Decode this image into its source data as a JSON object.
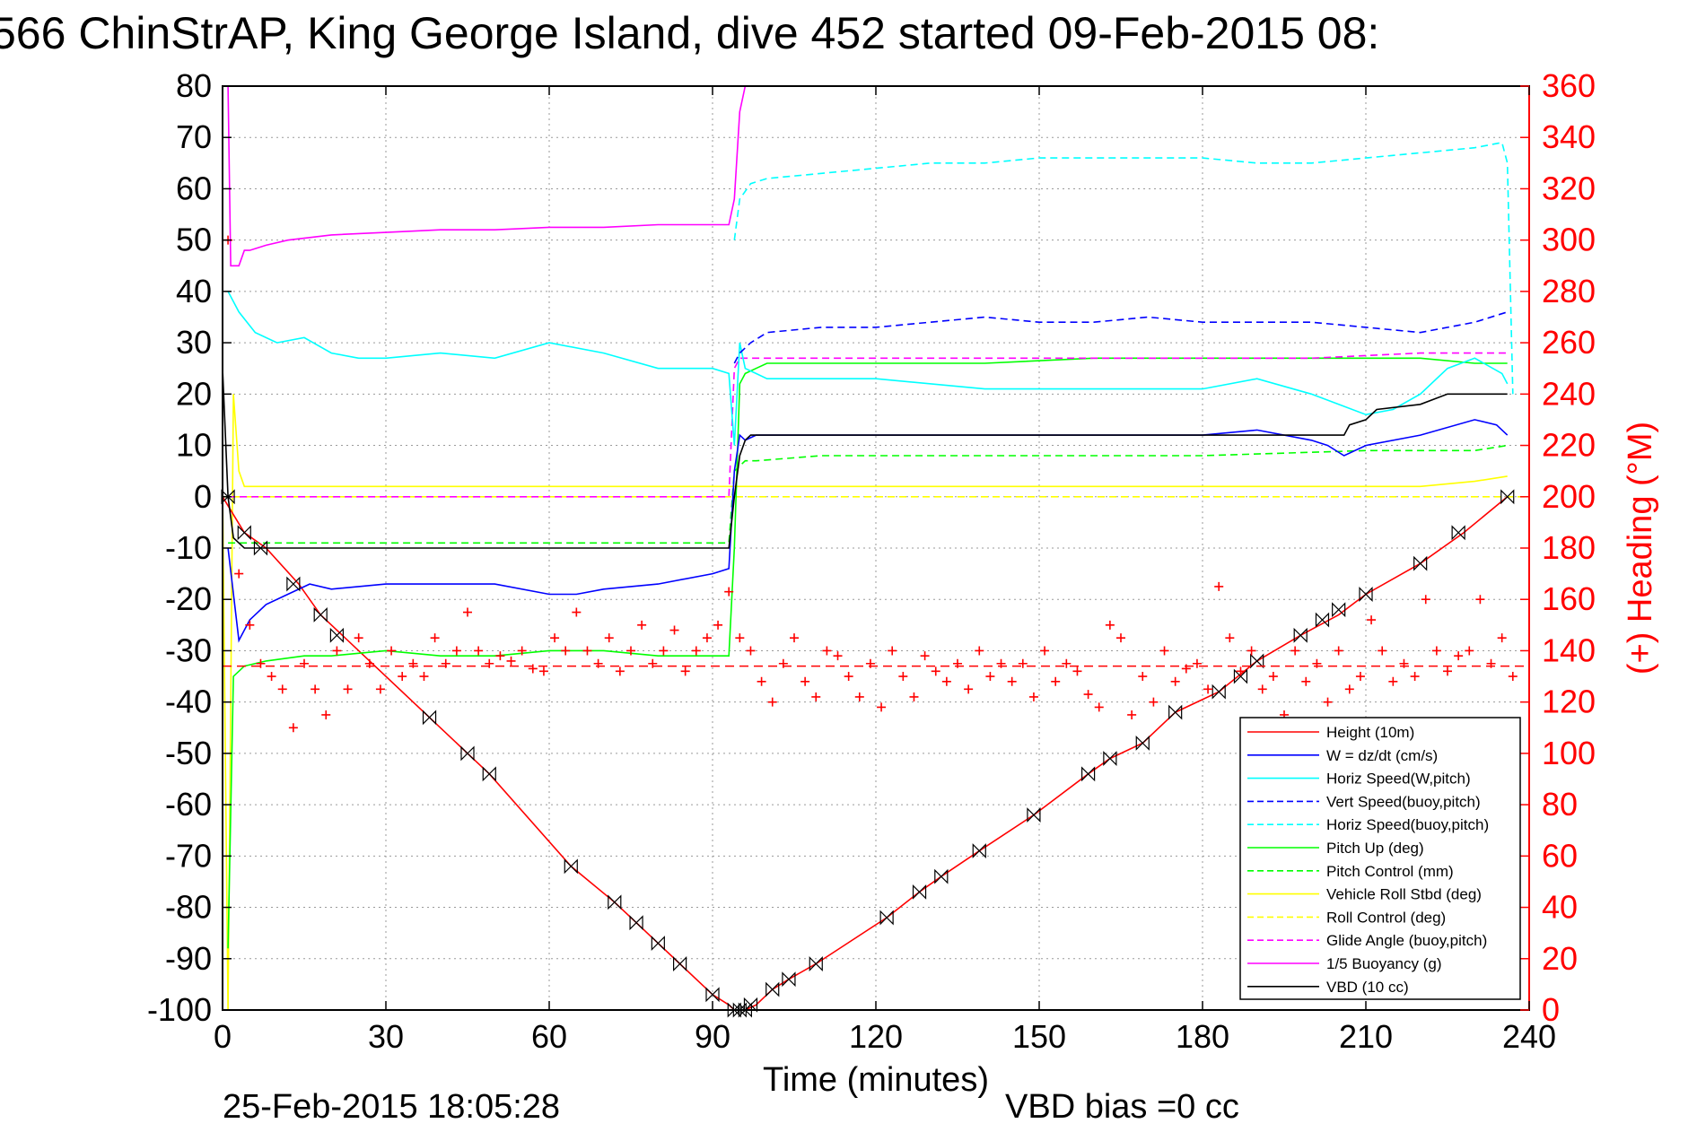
{
  "chart_data": {
    "type": "line",
    "title": "566 ChinStrAP, King George Island, dive 452 started 09-Feb-2015 08:",
    "xlabel": "Time (minutes)",
    "ylabel": "",
    "y2label": "(+) Heading (°M)",
    "xlim": [
      0,
      240
    ],
    "ylim": [
      -100,
      80
    ],
    "y2lim": [
      0,
      360
    ],
    "xticks": [
      0,
      30,
      60,
      90,
      120,
      150,
      180,
      210,
      240
    ],
    "yticks": [
      -100,
      -90,
      -80,
      -70,
      -60,
      -50,
      -40,
      -30,
      -20,
      -10,
      0,
      10,
      20,
      30,
      40,
      50,
      60,
      70,
      80
    ],
    "y2ticks": [
      0,
      20,
      40,
      60,
      80,
      100,
      120,
      140,
      160,
      180,
      200,
      220,
      240,
      260,
      280,
      300,
      320,
      340,
      360
    ],
    "grid": true,
    "legend_position": "bottom-right",
    "footer_left": "25-Feb-2015 18:05:28",
    "footer_right": "VBD bias =0 cc",
    "series": [
      {
        "name": "Height (10m)",
        "color": "#ff0000",
        "style": "solid",
        "x": [
          0,
          4,
          8,
          14,
          18,
          22,
          38,
          45,
          49,
          64,
          72,
          76,
          80,
          84,
          90,
          93,
          94,
          95,
          96,
          98,
          101,
          104,
          109,
          122,
          128,
          132,
          139,
          149,
          159,
          163,
          169,
          175,
          183,
          190,
          198,
          205,
          210,
          220,
          228,
          236
        ],
        "y": [
          0,
          -7,
          -10,
          -17,
          -23,
          -27,
          -43,
          -50,
          -54,
          -72,
          -79,
          -83,
          -87,
          -91,
          -97,
          -99,
          -100,
          -100,
          -100,
          -99,
          -96,
          -94,
          -91,
          -82,
          -77,
          -74,
          -69,
          -62,
          -54,
          -51,
          -48,
          -42,
          -38,
          -32,
          -27,
          -23,
          -19,
          -13,
          -7,
          0
        ]
      },
      {
        "name": "W = dz/dt (cm/s)",
        "color": "#0000ff",
        "style": "solid",
        "x": [
          1,
          3,
          5,
          8,
          12,
          16,
          20,
          30,
          40,
          50,
          60,
          65,
          70,
          80,
          90,
          93,
          94,
          95,
          96,
          98,
          100,
          105,
          110,
          120,
          140,
          160,
          180,
          190,
          200,
          203,
          206,
          210,
          220,
          230,
          234,
          236
        ],
        "y": [
          -10,
          -28,
          -24,
          -21,
          -19,
          -17,
          -18,
          -17,
          -17,
          -17,
          -19,
          -19,
          -18,
          -17,
          -15,
          -14,
          5,
          12,
          11,
          12,
          12,
          12,
          12,
          12,
          12,
          12,
          12,
          13,
          11,
          10,
          8,
          10,
          12,
          15,
          14,
          12
        ]
      },
      {
        "name": "Horiz Speed(W,pitch)",
        "color": "#00ffff",
        "style": "solid",
        "x": [
          1,
          3,
          6,
          10,
          15,
          20,
          25,
          30,
          40,
          50,
          60,
          70,
          80,
          90,
          93,
          94,
          95,
          96,
          98,
          100,
          110,
          120,
          140,
          160,
          180,
          190,
          200,
          205,
          210,
          215,
          220,
          225,
          230,
          235,
          236
        ],
        "y": [
          40,
          36,
          32,
          30,
          31,
          28,
          27,
          27,
          28,
          27,
          30,
          28,
          25,
          25,
          24,
          10,
          30,
          25,
          24,
          23,
          23,
          23,
          21,
          21,
          21,
          23,
          20,
          18,
          16,
          17,
          20,
          25,
          27,
          24,
          22
        ]
      },
      {
        "name": "Vert Speed(buoy,pitch)",
        "color": "#0000ff",
        "style": "dashed",
        "x": [
          94,
          95,
          97,
          100,
          110,
          120,
          130,
          140,
          150,
          160,
          170,
          180,
          190,
          200,
          210,
          220,
          230,
          236
        ],
        "y": [
          26,
          28,
          30,
          32,
          33,
          33,
          34,
          35,
          34,
          34,
          35,
          34,
          34,
          34,
          33,
          32,
          34,
          36
        ]
      },
      {
        "name": "Horiz Speed(buoy,pitch)",
        "color": "#00ffff",
        "style": "dashed",
        "x": [
          94,
          95,
          97,
          100,
          110,
          120,
          130,
          140,
          150,
          160,
          170,
          180,
          190,
          200,
          210,
          220,
          230,
          235,
          236,
          237
        ],
        "y": [
          50,
          58,
          61,
          62,
          63,
          64,
          65,
          65,
          66,
          66,
          66,
          66,
          65,
          65,
          66,
          67,
          68,
          69,
          65,
          20
        ]
      },
      {
        "name": "Pitch Up (deg)",
        "color": "#00ff00",
        "style": "solid",
        "x": [
          1,
          2,
          4,
          8,
          15,
          20,
          30,
          40,
          50,
          60,
          70,
          80,
          90,
          93,
          94,
          95,
          96,
          98,
          100,
          120,
          140,
          160,
          180,
          200,
          220,
          230,
          236
        ],
        "y": [
          -88,
          -35,
          -33,
          -32,
          -31,
          -31,
          -30,
          -31,
          -31,
          -30,
          -30,
          -31,
          -31,
          -31,
          -10,
          22,
          24,
          25,
          26,
          26,
          26,
          27,
          27,
          27,
          27,
          26,
          26
        ]
      },
      {
        "name": "Pitch Control (mm)",
        "color": "#00ff00",
        "style": "dashed",
        "x": [
          1,
          3,
          90,
          93,
          94,
          96,
          98,
          110,
          140,
          180,
          210,
          230,
          236
        ],
        "y": [
          -9,
          -9,
          -9,
          -9,
          5,
          7,
          7,
          8,
          8,
          8,
          9,
          9,
          10
        ]
      },
      {
        "name": "Vehicle Roll Stbd (deg)",
        "color": "#ffff00",
        "style": "solid",
        "x": [
          0,
          1,
          2,
          3,
          4,
          6,
          10,
          20,
          30,
          40,
          50,
          60,
          70,
          80,
          90,
          93,
          94,
          96,
          100,
          120,
          140,
          160,
          180,
          200,
          220,
          230,
          236
        ],
        "y": [
          2,
          -100,
          20,
          5,
          2,
          2,
          2,
          2,
          2,
          2,
          2,
          2,
          2,
          2,
          2,
          2,
          2,
          2,
          2,
          2,
          2,
          2,
          2,
          2,
          2,
          3,
          4
        ]
      },
      {
        "name": "Roll Control (deg)",
        "color": "#ffff00",
        "style": "dashed",
        "x": [
          0,
          240
        ],
        "y": [
          0,
          0
        ]
      },
      {
        "name": "Glide Angle (buoy,pitch)",
        "color": "#ff00ff",
        "style": "dashed",
        "x": [
          1,
          93,
          94,
          95,
          96,
          98,
          100,
          120,
          140,
          160,
          180,
          200,
          220,
          236
        ],
        "y": [
          0,
          0,
          25,
          27,
          27,
          27,
          27,
          27,
          27,
          27,
          27,
          27,
          28,
          28
        ]
      },
      {
        "name": "1/5 Buoyancy (g)",
        "color": "#ff00ff",
        "style": "solid",
        "x": [
          0,
          1,
          1.5,
          3,
          4,
          5,
          8,
          12,
          20,
          30,
          40,
          50,
          60,
          70,
          80,
          90,
          93,
          94,
          95,
          96
        ],
        "y": [
          80,
          80,
          45,
          45,
          48,
          48,
          49,
          50,
          51,
          51.5,
          52,
          52,
          52.5,
          52.5,
          53,
          53,
          53,
          58,
          75,
          80
        ]
      },
      {
        "name": "VBD (10 cc)",
        "color": "#000000",
        "style": "solid",
        "x": [
          0,
          1,
          2,
          3,
          4,
          8,
          20,
          40,
          60,
          80,
          90,
          93,
          94,
          95,
          96,
          97,
          100,
          120,
          150,
          180,
          190,
          200,
          206,
          207,
          210,
          212,
          220,
          225,
          230,
          236
        ],
        "y": [
          25,
          0,
          -8,
          -9,
          -10,
          -10,
          -10,
          -10,
          -10,
          -10,
          -10,
          -10,
          0,
          8,
          11,
          12,
          12,
          12,
          12,
          12,
          12,
          12,
          12,
          14,
          15,
          17,
          18,
          20,
          20,
          20
        ]
      }
    ],
    "heading_series": {
      "name": "(+) Heading",
      "color": "#ff0000",
      "marker": "+",
      "mean": 134,
      "x": [
        1,
        3,
        5,
        7,
        9,
        11,
        13,
        15,
        17,
        19,
        21,
        23,
        25,
        27,
        29,
        31,
        33,
        35,
        37,
        39,
        41,
        43,
        45,
        47,
        49,
        51,
        53,
        55,
        57,
        59,
        61,
        63,
        65,
        67,
        69,
        71,
        73,
        75,
        77,
        79,
        81,
        83,
        85,
        87,
        89,
        91,
        93,
        95,
        97,
        99,
        101,
        103,
        105,
        107,
        109,
        111,
        113,
        115,
        117,
        119,
        121,
        123,
        125,
        127,
        129,
        131,
        133,
        135,
        137,
        139,
        141,
        143,
        145,
        147,
        149,
        151,
        153,
        155,
        157,
        159,
        161,
        163,
        165,
        167,
        169,
        171,
        173,
        175,
        177,
        179,
        181,
        183,
        185,
        187,
        189,
        191,
        193,
        195,
        197,
        199,
        201,
        203,
        205,
        207,
        209,
        211,
        213,
        215,
        217,
        219,
        221,
        223,
        225,
        227,
        229,
        231,
        233,
        235,
        237
      ],
      "y": [
        300,
        170,
        150,
        135,
        130,
        125,
        110,
        135,
        125,
        115,
        140,
        125,
        145,
        135,
        125,
        140,
        130,
        135,
        130,
        145,
        135,
        140,
        155,
        140,
        135,
        138,
        136,
        140,
        133,
        132,
        145,
        140,
        155,
        140,
        135,
        145,
        132,
        140,
        150,
        135,
        140,
        148,
        132,
        140,
        145,
        150,
        163,
        145,
        140,
        128,
        120,
        135,
        145,
        128,
        122,
        140,
        138,
        130,
        122,
        135,
        118,
        140,
        130,
        122,
        138,
        132,
        128,
        135,
        125,
        140,
        130,
        135,
        128,
        135,
        122,
        140,
        128,
        135,
        132,
        123,
        118,
        150,
        145,
        115,
        130,
        120,
        140,
        128,
        133,
        135,
        125,
        165,
        145,
        132,
        140,
        125,
        130,
        115,
        140,
        128,
        135,
        120,
        140,
        125,
        130,
        152,
        140,
        128,
        135,
        130,
        160,
        140,
        132,
        138,
        140,
        160,
        135,
        145,
        130
      ]
    },
    "markers": {
      "x": [
        1,
        4,
        7,
        13,
        18,
        21,
        38,
        45,
        49,
        64,
        72,
        76,
        80,
        84,
        90,
        94,
        95,
        96,
        97,
        101,
        104,
        109,
        122,
        128,
        132,
        139,
        149,
        159,
        163,
        169,
        175,
        183,
        187,
        190,
        198,
        202,
        205,
        210,
        220,
        227,
        236
      ],
      "y": [
        0,
        -7,
        -10,
        -17,
        -23,
        -27,
        -43,
        -50,
        -54,
        -72,
        -79,
        -83,
        -87,
        -91,
        -97,
        -100,
        -100,
        -100,
        -99,
        -96,
        -94,
        -91,
        -82,
        -77,
        -74,
        -69,
        -62,
        -54,
        -51,
        -48,
        -42,
        -38,
        -35,
        -32,
        -27,
        -24,
        -22,
        -19,
        -13,
        -7,
        0
      ]
    }
  }
}
